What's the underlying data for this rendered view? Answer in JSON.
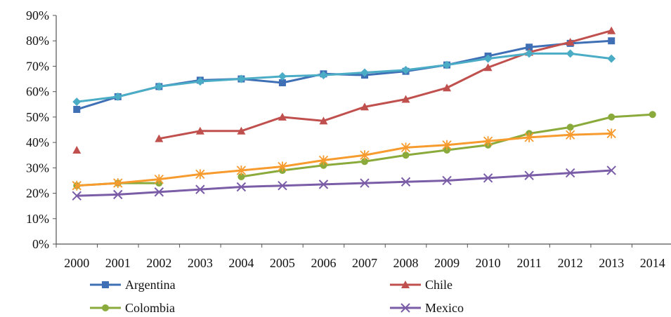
{
  "chart_data": {
    "type": "line",
    "x": [
      "2000",
      "2001",
      "2002",
      "2003",
      "2004",
      "2005",
      "2006",
      "2007",
      "2008",
      "2009",
      "2010",
      "2011",
      "2012",
      "2013",
      "2014"
    ],
    "ylim": [
      0,
      90
    ],
    "yticks": [
      "0%",
      "10%",
      "20%",
      "30%",
      "40%",
      "50%",
      "60%",
      "70%",
      "80%",
      "90%"
    ],
    "grid": false,
    "legend_position": "bottom",
    "series": [
      {
        "name": "Argentina",
        "color": "#3f6fb5",
        "marker": "square",
        "values": [
          53,
          58,
          62,
          64.5,
          65,
          63.5,
          67,
          66.5,
          68,
          70.5,
          74,
          77.5,
          79,
          80,
          null
        ]
      },
      {
        "name": "Chile",
        "color": "#c0504d",
        "marker": "triangle",
        "values": [
          37,
          null,
          41.5,
          44.5,
          44.5,
          50,
          48.5,
          54,
          57,
          61.5,
          69.5,
          75.5,
          79.5,
          84,
          null
        ]
      },
      {
        "name": "Colombia",
        "color": "#8aaa3c",
        "marker": "circle",
        "values": [
          23,
          24,
          24,
          null,
          26.5,
          29,
          31,
          32.5,
          35,
          37,
          39,
          43.5,
          46,
          50,
          51
        ]
      },
      {
        "name": "Mexico",
        "color": "#7a5ca7",
        "marker": "x",
        "values": [
          19,
          19.5,
          20.5,
          21.5,
          22.5,
          23,
          23.5,
          24,
          24.5,
          25,
          26,
          27,
          28,
          29,
          null
        ]
      },
      {
        "name": "",
        "color": "#f79b2e",
        "marker": "star",
        "values": [
          23,
          24,
          25.5,
          27.5,
          29,
          30.5,
          33,
          35,
          38,
          39,
          40.5,
          42,
          43,
          43.5,
          null
        ]
      },
      {
        "name": "",
        "color": "#4bacc6",
        "marker": "diamond",
        "values": [
          56,
          58,
          62,
          64,
          65,
          66,
          66.5,
          67.5,
          68.5,
          70.5,
          73,
          75,
          75,
          73,
          null
        ]
      }
    ]
  }
}
